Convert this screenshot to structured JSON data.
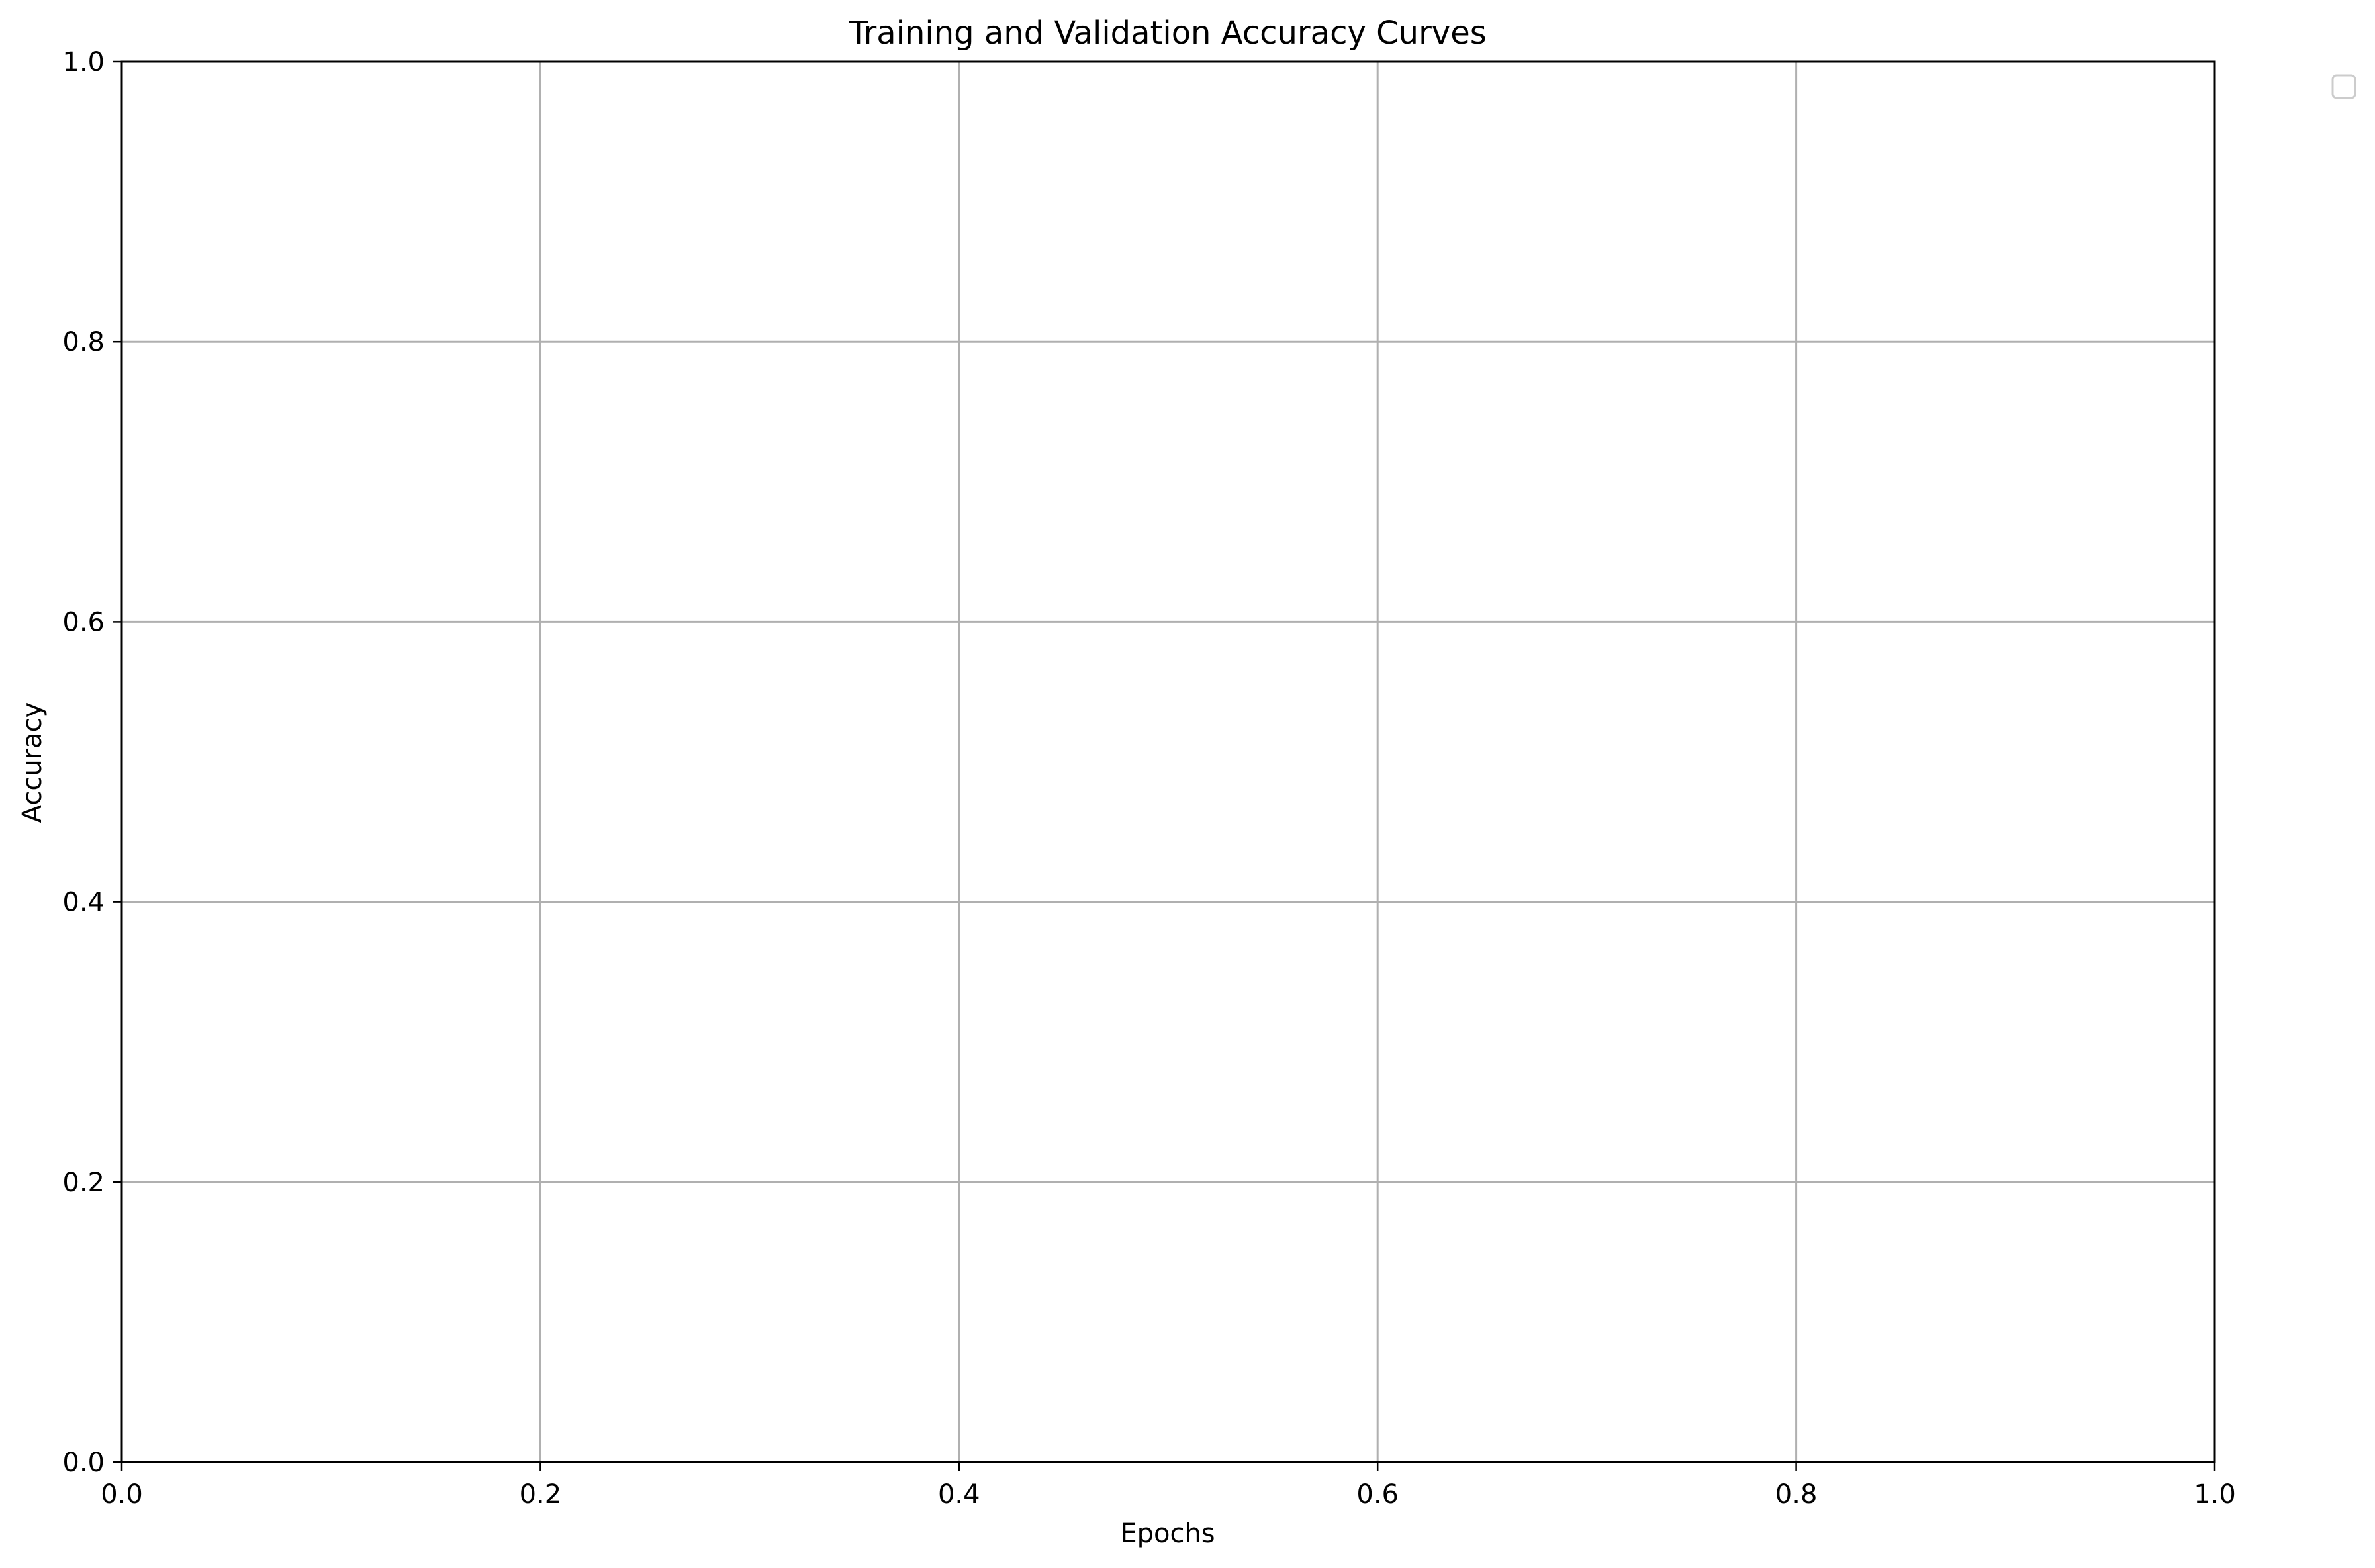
{
  "chart_data": {
    "type": "line",
    "title": "Training and Validation Accuracy Curves",
    "xlabel": "Epochs",
    "ylabel": "Accuracy",
    "xlim": [
      0.0,
      1.0
    ],
    "ylim": [
      0.0,
      1.0
    ],
    "xticks": [
      "0.0",
      "0.2",
      "0.4",
      "0.6",
      "0.8",
      "1.0"
    ],
    "yticks": [
      "0.0",
      "0.2",
      "0.4",
      "0.6",
      "0.8",
      "1.0"
    ],
    "series": [],
    "grid": true,
    "legend_placement": "outside-upper-right",
    "legend_entries": []
  }
}
